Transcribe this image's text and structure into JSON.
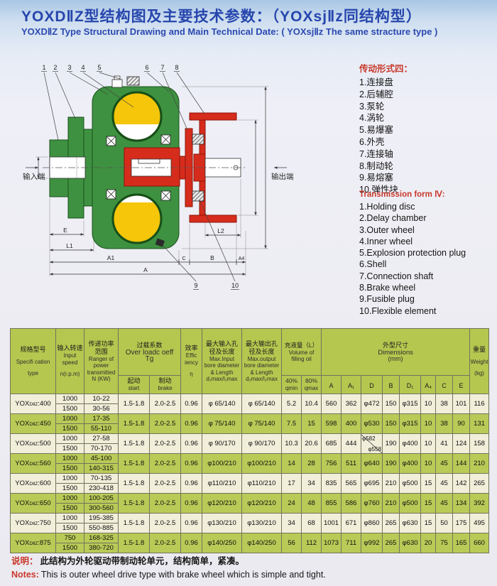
{
  "header": {
    "title_cn": "YOXDⅡZ型结构图及主要技术参数：（YOXsjⅡz同结构型）",
    "title_en": "YOXDⅡZ Type Structural Drawing and Main Technical Date: ( YOXsjⅡz The same stracture type )"
  },
  "parts_cn": {
    "heading": "传动形式四：",
    "items": [
      "1.连接盘",
      "2.后辅腔",
      "3.泵轮",
      "4.涡轮",
      "5.易爆塞",
      "6.外壳",
      "7.连接轴",
      "8.制动轮",
      "9.易熔塞",
      "10.弹性块"
    ]
  },
  "parts_en": {
    "heading": "Transmission form Ⅳ:",
    "items": [
      "1.Holding disc",
      "2.Delay chamber",
      "3.Outer wheel",
      "4.Inner wheel",
      "5.Explosion protection plug",
      "6.Shell",
      "7.Connection shaft",
      "8.Brake wheel",
      "9.Fusible plug",
      "10.Flexible element"
    ]
  },
  "diagram": {
    "input_label": "输入端",
    "output_label": "输出端",
    "callouts": [
      "1",
      "2",
      "3",
      "4",
      "5",
      "6",
      "7",
      "8",
      "9",
      "10"
    ],
    "dim_labels": {
      "E": "E",
      "L1": "L1",
      "A1": "A1",
      "C": "C",
      "B": "B",
      "A4": "A4",
      "A": "A",
      "L2": "L2"
    }
  },
  "table": {
    "headers": {
      "spec": [
        "规格型号",
        "Specifi cation",
        "type"
      ],
      "speed": [
        "输入转速",
        "Input",
        "speed",
        "n(r.p.m)"
      ],
      "power": [
        "传递功率",
        "范围",
        "Ranger of",
        "power",
        "transmitted",
        "N (KW)"
      ],
      "overload": [
        "过载系数",
        "Over loadc oeff",
        "Tg"
      ],
      "start": [
        "起动",
        "start"
      ],
      "brake": [
        "制动",
        "brake"
      ],
      "eff": [
        "效率",
        "Effic",
        "iency",
        "η"
      ],
      "max_in": [
        "最大输入孔",
        "径及长度",
        "Max.Input",
        "bore diameter",
        "& Length",
        "d₁max/l₁max"
      ],
      "max_out": [
        "最大输出孔",
        "径及长度",
        "Max.output",
        "bore diameter",
        "& Length",
        "d₂max/l₂max"
      ],
      "volume": [
        "充液量（L）",
        "Volume of",
        "filling oil"
      ],
      "q40": [
        "40%",
        "qmin"
      ],
      "q80": [
        "80%",
        "qmax"
      ],
      "dims": [
        "外型尺寸",
        "Dimensions",
        "(mm)"
      ],
      "dim_letters": [
        "A",
        "A₁",
        "D",
        "B",
        "D₁",
        "A₄",
        "C",
        "E"
      ],
      "weight": [
        "重量",
        "Weight",
        "(kg)"
      ]
    },
    "models": [
      {
        "name": [
          "YOX",
          "DⅡZ",
          ":400"
        ],
        "speeds": [
          "1000",
          "1500"
        ],
        "powers": [
          "10-22",
          "30-56"
        ],
        "start": "1.5-1.8",
        "brake": "2.0-2.5",
        "eff": "0.96",
        "max_input": "φ 65/140",
        "max_output": "φ 65/140",
        "q40": "5.2",
        "q80": "10.4",
        "dims": {
          "A": "560",
          "A1": "362",
          "D": "φ472",
          "B": "150",
          "D1": "φ315",
          "A4": "10",
          "C": "38",
          "E": "101"
        },
        "weight": "116"
      },
      {
        "name": [
          "YOX",
          "DⅡZ",
          ":450"
        ],
        "speeds": [
          "1000",
          "1500"
        ],
        "powers": [
          "17-35",
          "55-110"
        ],
        "start": "1.5-1.8",
        "brake": "2.0-2.5",
        "eff": "0.96",
        "max_input": "φ 75/140",
        "max_output": "φ 75/140",
        "q40": "7.5",
        "q80": "15",
        "dims": {
          "A": "598",
          "A1": "400",
          "D": "φ530",
          "B": "150",
          "D1": "φ315",
          "A4": "10",
          "C": "38",
          "E": "90"
        },
        "weight": "131"
      },
      {
        "name": [
          "YOX",
          "DⅡZ",
          ":500"
        ],
        "speeds": [
          "1000",
          "1500"
        ],
        "powers": [
          "27-58",
          "70-170"
        ],
        "start": "1.5-1.8",
        "brake": "2.0-2.5",
        "eff": "0.96",
        "max_input": "φ 90/170",
        "max_output": "φ 90/170",
        "q40": "10.3",
        "q80": "20.6",
        "dims": {
          "A": "685",
          "A1": "444",
          "D": {
            "top": "φ582",
            "bottom": "φ558"
          },
          "B": "190",
          "D1": "φ400",
          "A4": "10",
          "C": "41",
          "E": "124"
        },
        "weight": "158"
      },
      {
        "name": [
          "YOX",
          "DⅡZ",
          ":560"
        ],
        "speeds": [
          "1000",
          "1500"
        ],
        "powers": [
          "45-100",
          "140-315"
        ],
        "start": "1.5-1.8",
        "brake": "2.0-2.5",
        "eff": "0.96",
        "max_input": "φ100/210",
        "max_output": "φ100/210",
        "q40": "14",
        "q80": "28",
        "dims": {
          "A": "756",
          "A1": "511",
          "D": "φ640",
          "B": "190",
          "D1": "φ400",
          "A4": "10",
          "C": "45",
          "E": "144"
        },
        "weight": "210"
      },
      {
        "name": [
          "YOX",
          "DⅡZ",
          ":600"
        ],
        "speeds": [
          "1000",
          "1500"
        ],
        "powers": [
          "70-135",
          "230-418"
        ],
        "start": "1.5-1.8",
        "brake": "2.0-2.5",
        "eff": "0.96",
        "max_input": "φ110/210",
        "max_output": "φ110/210",
        "q40": "17",
        "q80": "34",
        "dims": {
          "A": "835",
          "A1": "565",
          "D": "φ695",
          "B": "210",
          "D1": "φ500",
          "A4": "15",
          "C": "45",
          "E": "142"
        },
        "weight": "265"
      },
      {
        "name": [
          "YOX",
          "DⅡZ",
          ":650"
        ],
        "speeds": [
          "1000",
          "1500"
        ],
        "powers": [
          "100-205",
          "300-560"
        ],
        "start": "1.5-1.8",
        "brake": "2.0-2.5",
        "eff": "0.96",
        "max_input": "φ120/210",
        "max_output": "φ120/210",
        "q40": "24",
        "q80": "48",
        "dims": {
          "A": "855",
          "A1": "586",
          "D": "φ760",
          "B": "210",
          "D1": "φ500",
          "A4": "15",
          "C": "45",
          "E": "134"
        },
        "weight": "392"
      },
      {
        "name": [
          "YOX",
          "DⅡZ",
          ":750"
        ],
        "speeds": [
          "1000",
          "1500"
        ],
        "powers": [
          "195-385",
          "550-885"
        ],
        "start": "1.5-1.8",
        "brake": "2.0-2.5",
        "eff": "0.96",
        "max_input": "φ130/210",
        "max_output": "φ130/210",
        "q40": "34",
        "q80": "68",
        "dims": {
          "A": "1001",
          "A1": "671",
          "D": "φ860",
          "B": "265",
          "D1": "φ630",
          "A4": "15",
          "C": "50",
          "E": "175"
        },
        "weight": "495"
      },
      {
        "name": [
          "YOX",
          "DⅡZ",
          ":875"
        ],
        "speeds": [
          "750",
          "1500"
        ],
        "powers": [
          "168-325",
          "380-720"
        ],
        "start": "1.5-1.8",
        "brake": "2.0-2.5",
        "eff": "0.96",
        "max_input": "φ140/250",
        "max_output": "φ140/250",
        "q40": "56",
        "q80": "112",
        "dims": {
          "A": "1073",
          "A1": "711",
          "D": "φ992",
          "B": "265",
          "D1": "φ630",
          "A4": "20",
          "C": "75",
          "E": "165"
        },
        "weight": "660"
      }
    ]
  },
  "notes": {
    "label_cn": "说明：",
    "text_cn": "此结构为外轮驱动带制动轮单元，结构简单，紧凑。",
    "label_en": "Notes:",
    "text_en": "This is outer wheel drive type with brake wheel which is simple and tight."
  }
}
